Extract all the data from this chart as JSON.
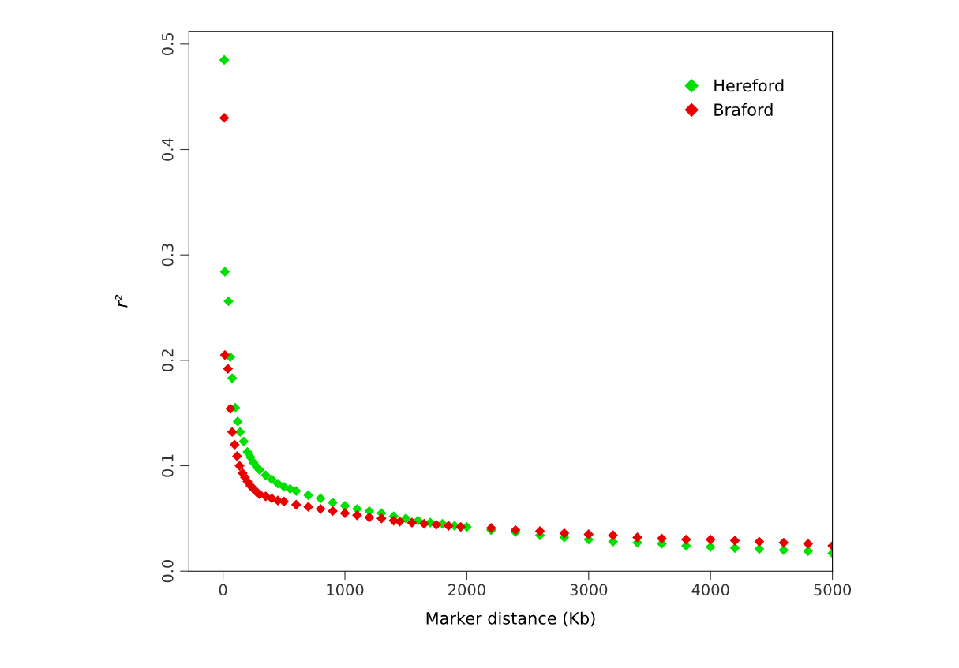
{
  "chart_data": {
    "type": "scatter",
    "xlabel": "Marker distance (Kb)",
    "ylabel": "r²",
    "xlim": [
      -280,
      5000
    ],
    "ylim": [
      0,
      0.512
    ],
    "xticks": [
      0,
      1000,
      2000,
      3000,
      4000,
      5000
    ],
    "yticks": [
      {
        "value": 0,
        "label": "0.0"
      },
      0.1,
      0.2,
      0.3,
      0.4,
      0.5
    ],
    "grid": false,
    "legend": "top right",
    "marker": "diamond",
    "series": [
      {
        "name": "Hereford",
        "color": "#00e000",
        "x": [
          10,
          15,
          45,
          60,
          75,
          100,
          120,
          140,
          170,
          200,
          225,
          250,
          275,
          300,
          350,
          400,
          450,
          500,
          550,
          600,
          700,
          800,
          900,
          1000,
          1100,
          1200,
          1300,
          1400,
          1500,
          1600,
          1700,
          1800,
          1900,
          2000,
          2200,
          2400,
          2600,
          2800,
          3000,
          3200,
          3400,
          3600,
          3800,
          4000,
          4200,
          4400,
          4600,
          4800,
          5000
        ],
        "values": [
          0.485,
          0.284,
          0.256,
          0.203,
          0.183,
          0.155,
          0.142,
          0.132,
          0.123,
          0.113,
          0.108,
          0.103,
          0.099,
          0.096,
          0.091,
          0.087,
          0.083,
          0.08,
          0.078,
          0.076,
          0.072,
          0.069,
          0.065,
          0.062,
          0.059,
          0.057,
          0.055,
          0.052,
          0.05,
          0.048,
          0.046,
          0.045,
          0.043,
          0.042,
          0.039,
          0.037,
          0.034,
          0.032,
          0.03,
          0.028,
          0.027,
          0.026,
          0.024,
          0.023,
          0.022,
          0.021,
          0.02,
          0.019,
          0.017
        ]
      },
      {
        "name": "Braford",
        "color": "#e80000",
        "x": [
          10,
          15,
          40,
          60,
          75,
          95,
          115,
          135,
          160,
          180,
          200,
          225,
          250,
          275,
          300,
          350,
          400,
          450,
          500,
          600,
          700,
          800,
          900,
          1000,
          1100,
          1200,
          1300,
          1400,
          1450,
          1550,
          1650,
          1750,
          1850,
          1950,
          2200,
          2400,
          2600,
          2800,
          3000,
          3200,
          3400,
          3600,
          3800,
          4000,
          4200,
          4400,
          4600,
          4800,
          5000
        ],
        "values": [
          0.43,
          0.205,
          0.192,
          0.154,
          0.132,
          0.12,
          0.109,
          0.1,
          0.093,
          0.089,
          0.085,
          0.081,
          0.078,
          0.075,
          0.073,
          0.071,
          0.069,
          0.067,
          0.066,
          0.063,
          0.061,
          0.059,
          0.057,
          0.055,
          0.053,
          0.051,
          0.05,
          0.048,
          0.047,
          0.046,
          0.045,
          0.044,
          0.043,
          0.042,
          0.041,
          0.039,
          0.038,
          0.036,
          0.035,
          0.034,
          0.032,
          0.031,
          0.03,
          0.03,
          0.029,
          0.028,
          0.027,
          0.026,
          0.024
        ]
      }
    ]
  }
}
